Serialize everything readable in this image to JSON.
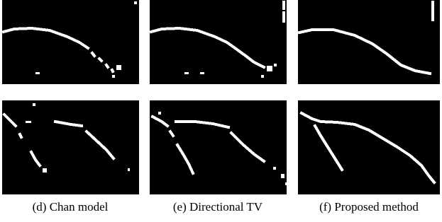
{
  "captions": [
    "(d) Chan model",
    "(e) Directional TV",
    "(f) Proposed method"
  ]
}
